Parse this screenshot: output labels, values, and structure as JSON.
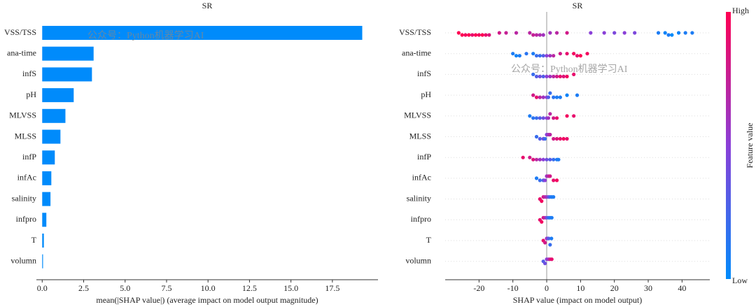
{
  "chart_data": [
    {
      "type": "bar",
      "title": "SR",
      "xlabel": "mean(|SHAP value|) (average impact on model output magnitude)",
      "categories": [
        "VSS/TSS",
        "ana-time",
        "infS",
        "pH",
        "MLVSS",
        "MLSS",
        "infP",
        "infAc",
        "salinity",
        "infpro",
        "T",
        "volumn"
      ],
      "values": [
        19.3,
        3.1,
        3.0,
        1.9,
        1.4,
        1.1,
        0.76,
        0.55,
        0.5,
        0.25,
        0.1,
        0.05
      ],
      "color": "#008bfb",
      "xlim": [
        -0.35,
        20.25
      ],
      "xticks": [
        {
          "value": 0,
          "label": "0.0"
        },
        2.5,
        {
          "value": 5,
          "label": "5.0"
        },
        7.5,
        {
          "value": 10,
          "label": "10.0"
        },
        12.5,
        {
          "value": 15,
          "label": "15.0"
        },
        17.5
      ],
      "watermark": "公众号：Python机器学习AI"
    },
    {
      "type": "beeswarm",
      "title": "SR",
      "xlabel": "SHAP value (impact on model output)",
      "categories": [
        "VSS/TSS",
        "ana-time",
        "infS",
        "pH",
        "MLVSS",
        "MLSS",
        "infP",
        "infAc",
        "salinity",
        "infpro",
        "T",
        "volumn"
      ],
      "values": [
        [
          -26,
          -25,
          -24,
          -23,
          -22,
          -21,
          -20,
          -19,
          -18,
          -17,
          -14,
          -12,
          -9,
          -5,
          -4,
          -3,
          -2,
          -1,
          1,
          3,
          6,
          13,
          17,
          20,
          23,
          26,
          33,
          35,
          36,
          37,
          39,
          41,
          43
        ],
        [
          -10,
          -9,
          -8,
          -6,
          -4,
          -3,
          -2,
          -1,
          0,
          1,
          2,
          4,
          6,
          8,
          9,
          10,
          12
        ],
        [
          -4,
          -3,
          -2,
          -1,
          0,
          1,
          2,
          3,
          4,
          5,
          6,
          8
        ],
        [
          -4,
          -3,
          -2,
          -1,
          0,
          0.5,
          1,
          2,
          3,
          4,
          6,
          9
        ],
        [
          -5,
          -4,
          -3,
          -2,
          -1,
          0,
          0.5,
          1,
          2,
          3,
          6,
          8
        ],
        [
          -3,
          -2,
          -1,
          -0.5,
          0,
          0.5,
          1,
          2,
          3,
          4,
          5,
          6
        ],
        [
          -7,
          -5,
          -4,
          -3,
          -2,
          -1,
          0,
          1,
          2,
          3,
          3.5
        ],
        [
          -3,
          -2,
          -1,
          -0.5,
          0,
          0.5,
          1,
          2,
          3
        ],
        [
          -2,
          -1.5,
          -1,
          -0.5,
          0,
          0.5,
          1,
          1.5,
          2
        ],
        [
          -2,
          -1.5,
          -1,
          -0.5,
          0,
          0.5,
          1,
          1.5
        ],
        [
          -1,
          -0.5,
          0,
          0.3,
          0.6,
          1,
          1.4
        ],
        [
          -1,
          -0.5,
          0,
          0.5,
          1,
          1.5
        ]
      ],
      "feature_values": [
        [
          1,
          1,
          0.95,
          1,
          0.9,
          1,
          0.95,
          1,
          0.9,
          0.85,
          0.8,
          0.75,
          0.7,
          0.7,
          0.75,
          0.7,
          0.65,
          0.6,
          0.6,
          0.7,
          0.8,
          0.5,
          0.5,
          0.45,
          0.5,
          0.45,
          0.1,
          0.05,
          0.1,
          0,
          0.05,
          0.1,
          0.1
        ],
        [
          0.1,
          0.05,
          0.1,
          0.15,
          0.1,
          0.2,
          0.2,
          0.3,
          0.5,
          0.6,
          0.7,
          0.8,
          0.9,
          0.95,
          0.9,
          1,
          0.95
        ],
        [
          0.2,
          0.3,
          0.4,
          0.3,
          0.5,
          0.6,
          0.7,
          0.8,
          0.9,
          0.85,
          0.95,
          0.9
        ],
        [
          0.8,
          0.9,
          0.7,
          0.6,
          0.5,
          0.3,
          0.2,
          0.15,
          0.1,
          0.1,
          0.05,
          0.1
        ],
        [
          0.1,
          0.15,
          0.2,
          0.3,
          0.4,
          0.5,
          0.6,
          0.7,
          0.8,
          0.9,
          0.95,
          0.9
        ],
        [
          0.2,
          0.3,
          0.4,
          0.2,
          0.5,
          0.6,
          0.7,
          0.8,
          0.85,
          0.9,
          0.95,
          0.9
        ],
        [
          0.9,
          0.8,
          0.85,
          0.7,
          0.6,
          0.5,
          0.4,
          0.3,
          0.2,
          0.1,
          0.1
        ],
        [
          0.1,
          0.2,
          0.3,
          0.5,
          0.6,
          0.7,
          0.8,
          0.9,
          0.95
        ],
        [
          0.9,
          0.95,
          0.8,
          0.7,
          0.6,
          0.4,
          0.2,
          0.1,
          0.1
        ],
        [
          0.9,
          0.95,
          0.8,
          0.7,
          0.4,
          0.2,
          0.1,
          0.1
        ],
        [
          0.9,
          0.8,
          0.6,
          0.5,
          0.3,
          0.2,
          0.1
        ],
        [
          0.3,
          0.4,
          0.5,
          0.6,
          0.8,
          0.9
        ]
      ],
      "colormap": [
        "#008bfb",
        "#8a3fd8",
        "#ff0052"
      ],
      "xlim": [
        -30,
        48.2
      ],
      "xticks": [
        -20,
        -10,
        0,
        10,
        20,
        30,
        40
      ],
      "colorbar_label": "Feature value",
      "colorbar_high": "High",
      "colorbar_low": "Low",
      "watermark": "公众号：Python机器学习AI"
    }
  ]
}
